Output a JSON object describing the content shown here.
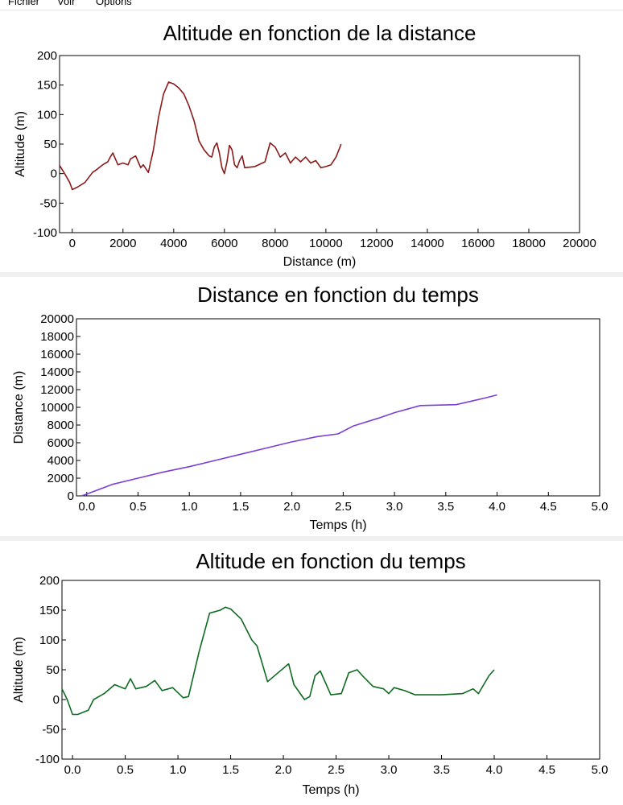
{
  "menu": {
    "items": [
      "Fichier",
      "Voir",
      "Options"
    ]
  },
  "colors": {
    "chart1_line": "#8b1a1a",
    "chart2_line": "#7b3fd6",
    "chart3_line": "#0e6b20",
    "separator": "#f0f0f0"
  },
  "chart_data": [
    {
      "type": "line",
      "title": "Altitude en fonction de la distance",
      "xlabel": "Distance (m)",
      "ylabel": "Altitude (m)",
      "xlim": [
        -500,
        20000
      ],
      "ylim": [
        -100,
        200
      ],
      "xticks": [
        0,
        2000,
        4000,
        6000,
        8000,
        10000,
        12000,
        14000,
        16000,
        18000,
        20000
      ],
      "xtick_labels": [
        "0",
        "2000",
        "4000",
        "6000",
        "8000",
        "10000",
        "12000",
        "14000",
        "16000",
        "18000",
        "20000"
      ],
      "yticks": [
        -100,
        -50,
        0,
        50,
        100,
        150,
        200
      ],
      "ytick_labels": [
        "-100",
        "-50",
        "0",
        "50",
        "100",
        "150",
        "200"
      ],
      "grid": false,
      "series": [
        {
          "x": [
            -500,
            -300,
            -100,
            0,
            200,
            500,
            800,
            1000,
            1200,
            1400,
            1500,
            1600,
            1700,
            1800,
            2000,
            2200,
            2300,
            2500,
            2600,
            2700,
            2800,
            3000,
            3200,
            3400,
            3600,
            3800,
            4000,
            4200,
            4400,
            4600,
            4800,
            5000,
            5200,
            5400,
            5500,
            5600,
            5700,
            5800,
            5900,
            6000,
            6100,
            6200,
            6300,
            6400,
            6500,
            6600,
            6700,
            6800,
            7200,
            7600,
            7800,
            8000,
            8200,
            8400,
            8600,
            8800,
            9000,
            9200,
            9400,
            9600,
            9800,
            10000,
            10200,
            10400,
            10600
          ],
          "y": [
            14,
            0,
            -15,
            -27,
            -23,
            -15,
            2,
            8,
            15,
            20,
            28,
            35,
            25,
            15,
            18,
            15,
            25,
            30,
            20,
            10,
            15,
            2,
            40,
            95,
            135,
            155,
            152,
            145,
            135,
            115,
            90,
            55,
            40,
            30,
            28,
            45,
            52,
            35,
            10,
            0,
            20,
            48,
            40,
            15,
            10,
            22,
            30,
            10,
            12,
            20,
            52,
            45,
            28,
            35,
            18,
            28,
            20,
            28,
            18,
            22,
            10,
            12,
            15,
            28,
            50
          ]
        }
      ]
    },
    {
      "type": "line",
      "title": "Distance en fonction du temps",
      "xlabel": "Temps (h)",
      "ylabel": "Distance (m)",
      "xlim": [
        -0.1,
        5.0
      ],
      "ylim": [
        0,
        20000
      ],
      "xticks": [
        0,
        0.5,
        1,
        1.5,
        2,
        2.5,
        3,
        3.5,
        4,
        4.5,
        5
      ],
      "xtick_labels": [
        "0.0",
        "0.5",
        "1.0",
        "1.5",
        "2.0",
        "2.5",
        "3.0",
        "3.5",
        "4.0",
        "4.5",
        "5.0"
      ],
      "yticks": [
        0,
        2000,
        4000,
        6000,
        8000,
        10000,
        12000,
        14000,
        16000,
        18000,
        20000
      ],
      "ytick_labels": [
        "0",
        "2000",
        "4000",
        "6000",
        "8000",
        "10000",
        "12000",
        "14000",
        "16000",
        "18000",
        "20000"
      ],
      "grid": false,
      "series": [
        {
          "x": [
            -0.05,
            0,
            0.25,
            0.5,
            0.75,
            1.0,
            1.25,
            1.5,
            1.75,
            2.0,
            2.25,
            2.45,
            2.6,
            2.85,
            3.0,
            3.25,
            3.4,
            3.6,
            3.75,
            3.9,
            4.0
          ],
          "y": [
            0,
            200,
            1300,
            2000,
            2700,
            3300,
            4000,
            4700,
            5400,
            6100,
            6700,
            7000,
            7900,
            8800,
            9400,
            10200,
            10250,
            10300,
            10700,
            11100,
            11400
          ]
        }
      ]
    },
    {
      "type": "line",
      "title": "Altitude en fonction du temps",
      "xlabel": "Temps (h)",
      "ylabel": "Altitude (m)",
      "xlim": [
        -0.1,
        5.0
      ],
      "ylim": [
        -100,
        200
      ],
      "xticks": [
        0,
        0.5,
        1,
        1.5,
        2,
        2.5,
        3,
        3.5,
        4,
        4.5,
        5
      ],
      "xtick_labels": [
        "0.0",
        "0.5",
        "1.0",
        "1.5",
        "2.0",
        "2.5",
        "3.0",
        "3.5",
        "4.0",
        "4.5",
        "5.0"
      ],
      "yticks": [
        -100,
        -50,
        0,
        50,
        100,
        150,
        200
      ],
      "ytick_labels": [
        "-100",
        "-50",
        "0",
        "50",
        "100",
        "150",
        "200"
      ],
      "grid": false,
      "series": [
        {
          "x": [
            -0.1,
            -0.05,
            0.0,
            0.05,
            0.15,
            0.2,
            0.3,
            0.4,
            0.5,
            0.55,
            0.6,
            0.7,
            0.78,
            0.85,
            0.95,
            1.05,
            1.1,
            1.2,
            1.3,
            1.4,
            1.45,
            1.5,
            1.6,
            1.7,
            1.75,
            1.8,
            1.85,
            1.95,
            2.05,
            2.1,
            2.2,
            2.25,
            2.3,
            2.35,
            2.45,
            2.55,
            2.62,
            2.7,
            2.75,
            2.85,
            2.95,
            3.0,
            3.05,
            3.15,
            3.25,
            3.5,
            3.7,
            3.8,
            3.85,
            3.95,
            4.0
          ],
          "y": [
            18,
            0,
            -25,
            -25,
            -18,
            0,
            10,
            25,
            18,
            35,
            18,
            22,
            32,
            15,
            20,
            3,
            5,
            80,
            145,
            150,
            155,
            152,
            135,
            100,
            90,
            60,
            30,
            45,
            60,
            25,
            0,
            5,
            40,
            48,
            8,
            10,
            45,
            50,
            40,
            22,
            18,
            10,
            20,
            15,
            8,
            8,
            10,
            18,
            10,
            40,
            50
          ]
        }
      ]
    }
  ]
}
